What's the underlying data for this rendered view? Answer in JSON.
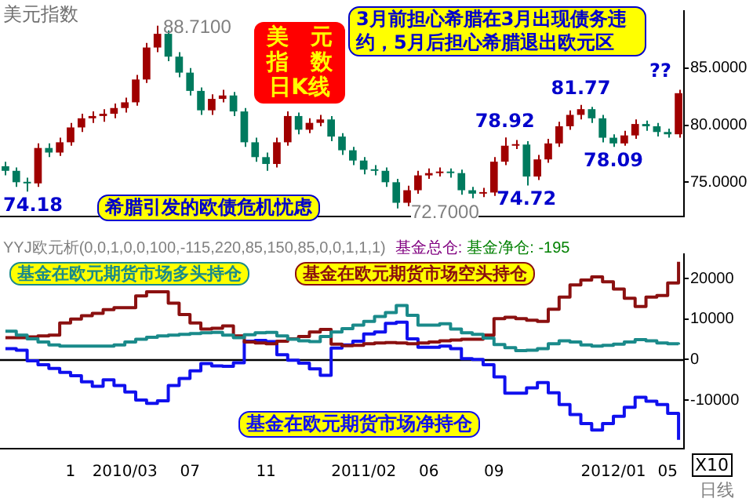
{
  "chart_data": [
    {
      "type": "candlestick",
      "title": "美元指数",
      "categories": [
        null,
        null,
        null,
        null,
        null,
        null,
        "1",
        null,
        null,
        null,
        null,
        "2010/03",
        null,
        null,
        null,
        null,
        null,
        "07",
        null,
        null,
        null,
        null,
        null,
        null,
        "11",
        null,
        null,
        null,
        null,
        null,
        null,
        null,
        null,
        "2011/02",
        null,
        null,
        null,
        null,
        null,
        "06",
        null,
        null,
        null,
        null,
        null,
        "09",
        null,
        null,
        null,
        null,
        null,
        null,
        null,
        null,
        null,
        null,
        "2012/01",
        null,
        null,
        null,
        null,
        "05",
        null
      ],
      "ohlc": [
        [
          76.4,
          76.8,
          75.6,
          76.0
        ],
        [
          76.0,
          76.3,
          74.6,
          75.0
        ],
        [
          75.0,
          75.4,
          74.18,
          74.9
        ],
        [
          74.9,
          78.4,
          74.6,
          78.0
        ],
        [
          78.0,
          78.4,
          77.2,
          77.6
        ],
        [
          77.6,
          78.9,
          77.3,
          78.5
        ],
        [
          78.5,
          80.2,
          78.2,
          79.8
        ],
        [
          79.8,
          81.0,
          79.4,
          80.6
        ],
        [
          80.6,
          81.2,
          80.2,
          80.8
        ],
        [
          80.8,
          81.4,
          80.3,
          81.0
        ],
        [
          81.0,
          81.9,
          80.6,
          81.5
        ],
        [
          81.5,
          82.4,
          81.1,
          82.0
        ],
        [
          82.0,
          84.4,
          81.7,
          84.0
        ],
        [
          84.0,
          87.2,
          83.7,
          86.8
        ],
        [
          86.8,
          88.71,
          86.4,
          88.0
        ],
        [
          88.0,
          88.3,
          85.6,
          86.0
        ],
        [
          86.0,
          86.4,
          84.2,
          84.6
        ],
        [
          84.6,
          85.0,
          82.6,
          83.0
        ],
        [
          83.0,
          83.3,
          80.9,
          81.3
        ],
        [
          81.3,
          82.7,
          80.9,
          82.3
        ],
        [
          82.3,
          83.1,
          82.0,
          82.6
        ],
        [
          82.6,
          82.9,
          80.8,
          81.2
        ],
        [
          81.2,
          81.5,
          78.1,
          78.5
        ],
        [
          78.5,
          78.9,
          76.8,
          77.2
        ],
        [
          77.2,
          77.6,
          76.0,
          76.6
        ],
        [
          76.6,
          78.9,
          76.3,
          78.5
        ],
        [
          78.5,
          81.2,
          78.2,
          80.8
        ],
        [
          80.8,
          81.1,
          79.2,
          79.6
        ],
        [
          79.6,
          80.6,
          79.3,
          80.2
        ],
        [
          80.2,
          80.9,
          79.9,
          80.5
        ],
        [
          80.5,
          80.8,
          78.6,
          79.0
        ],
        [
          79.0,
          79.3,
          77.4,
          77.8
        ],
        [
          77.8,
          78.1,
          76.5,
          76.9
        ],
        [
          76.9,
          77.2,
          75.7,
          76.1
        ],
        [
          76.1,
          76.5,
          75.6,
          76.0
        ],
        [
          76.0,
          76.3,
          74.6,
          75.0
        ],
        [
          75.0,
          75.3,
          72.7,
          73.2
        ],
        [
          73.2,
          74.7,
          72.9,
          74.3
        ],
        [
          74.3,
          76.0,
          74.0,
          75.6
        ],
        [
          75.6,
          76.2,
          75.3,
          75.8
        ],
        [
          75.8,
          76.3,
          75.5,
          75.9
        ],
        [
          75.9,
          76.2,
          75.4,
          75.8
        ],
        [
          75.8,
          76.1,
          73.9,
          74.3
        ],
        [
          74.3,
          74.6,
          73.6,
          74.0
        ],
        [
          74.0,
          74.5,
          73.7,
          74.1
        ],
        [
          74.1,
          77.2,
          73.8,
          76.8
        ],
        [
          76.8,
          78.92,
          76.5,
          78.2
        ],
        [
          78.2,
          78.7,
          77.9,
          78.3
        ],
        [
          78.3,
          78.6,
          74.72,
          75.5
        ],
        [
          75.5,
          77.4,
          75.2,
          77.0
        ],
        [
          77.0,
          78.8,
          76.7,
          78.4
        ],
        [
          78.4,
          80.3,
          78.1,
          79.9
        ],
        [
          79.9,
          81.3,
          79.6,
          80.9
        ],
        [
          80.9,
          81.77,
          80.5,
          81.4
        ],
        [
          81.4,
          81.6,
          80.2,
          80.6
        ],
        [
          80.6,
          80.9,
          78.5,
          78.9
        ],
        [
          78.9,
          79.2,
          78.09,
          78.4
        ],
        [
          78.4,
          79.5,
          78.2,
          79.1
        ],
        [
          79.1,
          80.5,
          78.8,
          80.1
        ],
        [
          80.1,
          80.4,
          79.5,
          79.9
        ],
        [
          79.9,
          80.2,
          79.0,
          79.4
        ],
        [
          79.4,
          79.7,
          78.9,
          79.2
        ],
        [
          79.2,
          83.1,
          78.9,
          82.8
        ]
      ],
      "ylim": [
        72,
        90
      ],
      "yticks": [
        {
          "value": 75,
          "label": "75.0000"
        },
        {
          "value": 80,
          "label": "80.0000"
        },
        {
          "value": 85,
          "label": "85.0000"
        }
      ],
      "tick_labels": "y",
      "annotations": [
        "美元指数日K线",
        "希腊引发的欧债危机忧虑",
        "3月前担心希腊在3月出现债务违约，5月后担心希腊退出欧元区",
        "??",
        "88.7100",
        "72.7000",
        {
          "text": "74.18",
          "y": 74.18
        },
        {
          "text": "78.92",
          "y": 78.92
        },
        {
          "text": "74.72",
          "y": 74.72
        },
        {
          "text": "81.77",
          "y": 81.77
        },
        {
          "text": "78.09",
          "y": 78.09
        }
      ]
    },
    {
      "type": "line",
      "title": "YYJ欧元析(0,0,1,0,0,100,-115,220,85,150,85,0,0,1,1,1)",
      "xlabel": "日线",
      "categories": [
        null,
        null,
        null,
        null,
        null,
        null,
        "1",
        null,
        null,
        null,
        null,
        "2010/03",
        null,
        null,
        null,
        null,
        null,
        "07",
        null,
        null,
        null,
        null,
        null,
        null,
        "11",
        null,
        null,
        null,
        null,
        null,
        null,
        null,
        null,
        "2011/02",
        null,
        null,
        null,
        null,
        null,
        "06",
        null,
        null,
        null,
        null,
        null,
        "09",
        null,
        null,
        null,
        null,
        null,
        null,
        null,
        null,
        null,
        null,
        "2012/01",
        null,
        null,
        null,
        null,
        "05",
        null
      ],
      "series": [
        {
          "name": "基金在欧元期货市场多头持仓",
          "type": "step",
          "color": "#1a8a8a",
          "values": [
            7000,
            6000,
            5100,
            4300,
            3600,
            3300,
            3300,
            3300,
            3300,
            3300,
            3600,
            4300,
            5000,
            5500,
            5800,
            6000,
            6200,
            6400,
            6600,
            6700,
            6000,
            5400,
            6100,
            6600,
            6700,
            5800,
            5000,
            4600,
            4400,
            5700,
            6800,
            7600,
            8500,
            9400,
            10600,
            11600,
            13300,
            10900,
            8500,
            8500,
            8800,
            7500,
            6600,
            6200,
            5300,
            3700,
            2900,
            2200,
            2300,
            2700,
            3900,
            4600,
            4300,
            3600,
            3300,
            3500,
            3800,
            4300,
            4900,
            4600,
            4100,
            3900,
            3700
          ]
        },
        {
          "name": "基金在欧元期货市场空头持仓",
          "type": "step",
          "color": "#8b1010",
          "values": [
            5400,
            5400,
            5600,
            5800,
            6000,
            9000,
            10000,
            10800,
            11400,
            12300,
            12800,
            12800,
            15700,
            16700,
            16700,
            13900,
            11100,
            9000,
            7500,
            7700,
            8300,
            5800,
            4300,
            4100,
            3900,
            4500,
            5100,
            5700,
            6800,
            7400,
            3800,
            3400,
            3500,
            3900,
            4100,
            4200,
            4100,
            3900,
            4100,
            4300,
            4600,
            4800,
            5000,
            5000,
            6000,
            10100,
            10400,
            10100,
            9700,
            9400,
            12400,
            15400,
            18400,
            19600,
            20400,
            19200,
            17400,
            15100,
            13100,
            15400,
            15800,
            18900,
            24100
          ]
        },
        {
          "name": "基金在欧元期货市场净持仓",
          "type": "step",
          "color": "#1010ee",
          "values": [
            2700,
            2300,
            -300,
            -1300,
            -2200,
            -3200,
            -4000,
            -5500,
            -6600,
            -5000,
            -6400,
            -8000,
            -10000,
            -10800,
            -10200,
            -6400,
            -4700,
            -2800,
            -1000,
            -1600,
            -1700,
            -800,
            4500,
            4700,
            4400,
            1200,
            -200,
            -900,
            -2300,
            -3900,
            2800,
            3600,
            4500,
            6300,
            6800,
            8900,
            9200,
            5100,
            3000,
            3000,
            3300,
            2700,
            200,
            0,
            -1300,
            -4300,
            -8300,
            -8300,
            -7000,
            -5700,
            -8200,
            -11100,
            -13600,
            -15800,
            -17400,
            -15800,
            -14000,
            -11800,
            -9300,
            -10300,
            -11100,
            -13300,
            -19800
          ]
        }
      ],
      "ylim": [
        -22000,
        26000
      ],
      "yticks": [
        -10000,
        0,
        10000,
        20000
      ],
      "ref_lines": [
        {
          "axis": "y",
          "value": 0,
          "color": "#000000"
        }
      ],
      "annotations": [
        "基金总仓:",
        "基金净仓: -195",
        "X10"
      ]
    }
  ]
}
